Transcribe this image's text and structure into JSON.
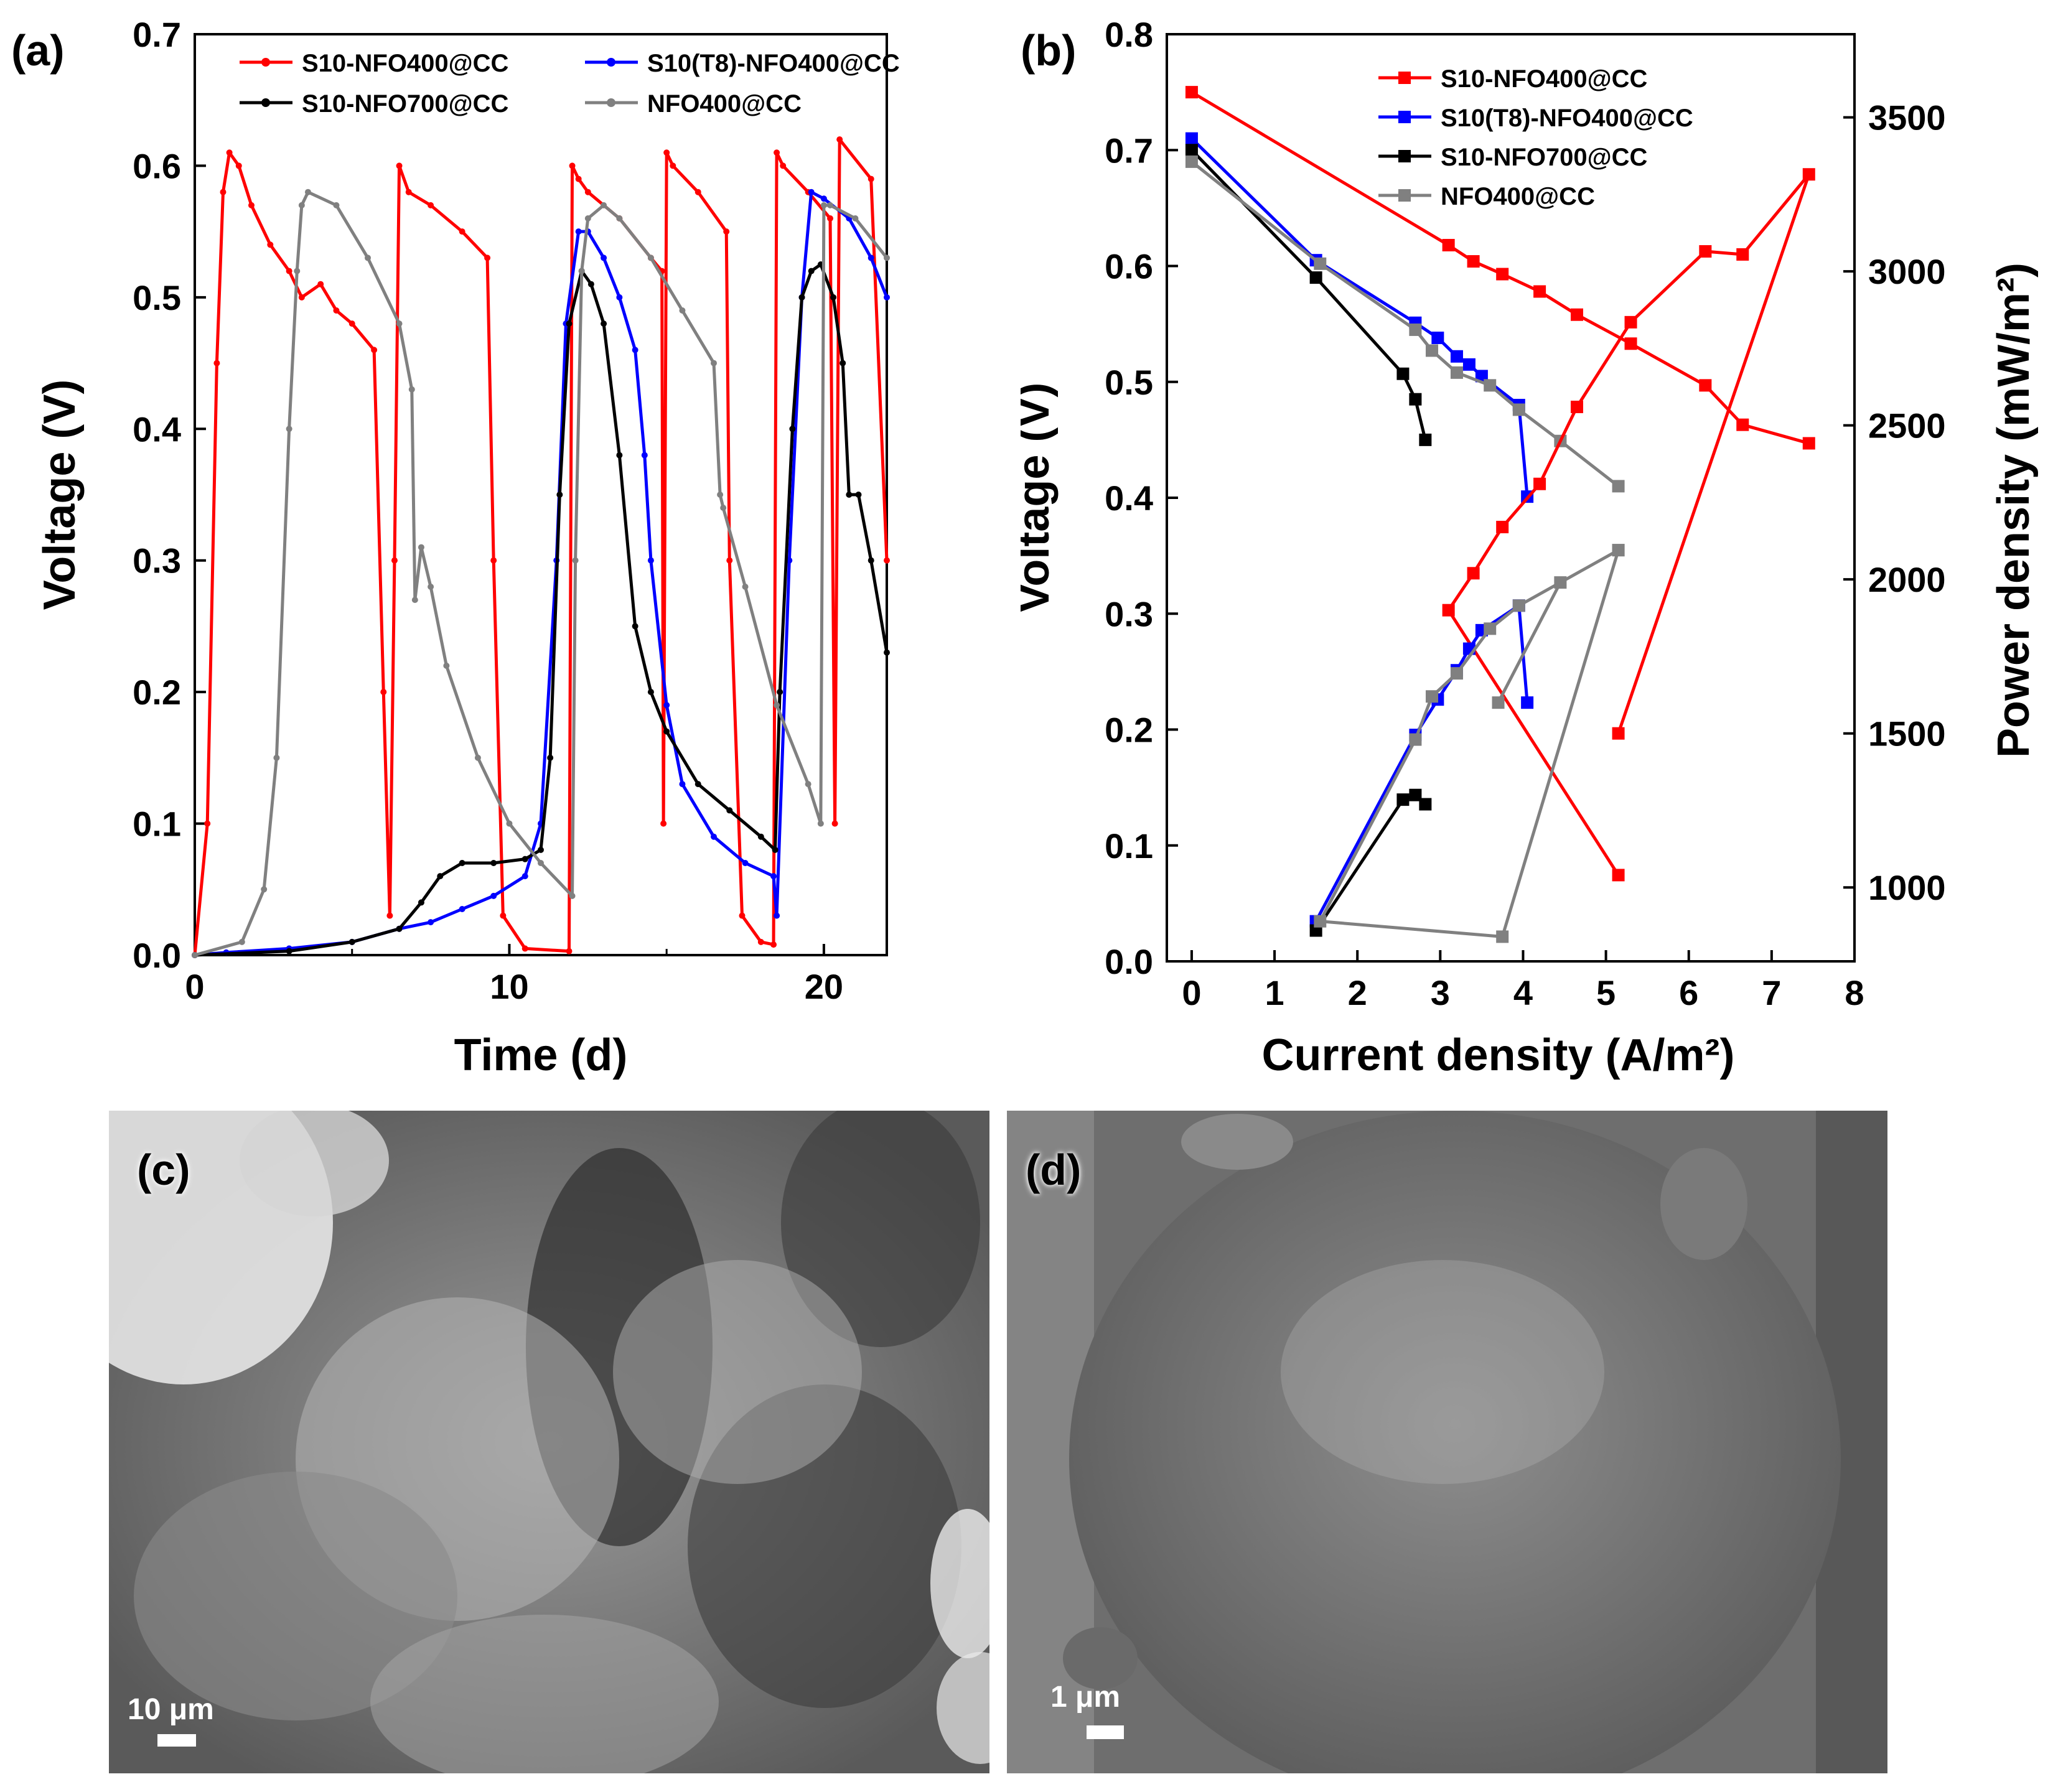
{
  "colors": {
    "S10-NFO400@CC": "#ff0000",
    "S10(T8)-NFO400@CC": "#0000ff",
    "S10-NFO700@CC": "#000000",
    "NFO400@CC": "#808080"
  },
  "chart_data": [
    {
      "panel": "(a)",
      "type": "line",
      "xlabel": "Time (d)",
      "ylabel": "Voltage (V)",
      "xlim": [
        0,
        22
      ],
      "ylim": [
        0,
        0.7
      ],
      "xticks": [
        "0",
        "10",
        "20"
      ],
      "yticks": [
        "0.0",
        "0.1",
        "0.2",
        "0.3",
        "0.4",
        "0.5",
        "0.6",
        "0.7"
      ],
      "legend": [
        "S10-NFO400@CC",
        "S10(T8)-NFO400@CC",
        "S10-NFO700@CC",
        "NFO400@CC"
      ],
      "legend_position": "top",
      "series": [
        {
          "name": "S10-NFO400@CC",
          "x": [
            0,
            0.4,
            0.7,
            0.9,
            1.1,
            1.4,
            1.8,
            2.4,
            3.0,
            3.4,
            4.0,
            4.5,
            5.0,
            5.7,
            6.0,
            6.2,
            6.35,
            6.5,
            6.8,
            7.5,
            8.5,
            9.3,
            9.5,
            9.8,
            10.5,
            11.9,
            12.0,
            12.2,
            12.5,
            13.5,
            14.5,
            14.85,
            14.9,
            15.0,
            15.2,
            16.0,
            16.9,
            17.0,
            17.4,
            18.0,
            18.4,
            18.5,
            18.7,
            19.5,
            20.2,
            20.35,
            20.5,
            21.5,
            22.0
          ],
          "y": [
            0,
            0.1,
            0.45,
            0.58,
            0.61,
            0.6,
            0.57,
            0.54,
            0.52,
            0.5,
            0.51,
            0.49,
            0.48,
            0.46,
            0.2,
            0.03,
            0.3,
            0.6,
            0.58,
            0.57,
            0.55,
            0.53,
            0.3,
            0.03,
            0.005,
            0.003,
            0.6,
            0.59,
            0.58,
            0.56,
            0.53,
            0.52,
            0.1,
            0.61,
            0.6,
            0.58,
            0.55,
            0.3,
            0.03,
            0.01,
            0.008,
            0.61,
            0.6,
            0.58,
            0.56,
            0.1,
            0.62,
            0.59,
            0.3
          ]
        },
        {
          "name": "S10(T8)-NFO400@CC",
          "x": [
            0,
            1,
            3,
            5,
            6.5,
            7.5,
            8.5,
            9.5,
            10.5,
            11.0,
            11.5,
            11.8,
            12.2,
            12.5,
            13.0,
            13.5,
            14.0,
            14.3,
            14.5,
            15.0,
            15.5,
            16.5,
            17.5,
            18.4,
            18.5,
            18.9,
            19.3,
            19.6,
            20.0,
            20.8,
            21.5,
            22.0
          ],
          "y": [
            0,
            0.002,
            0.005,
            0.01,
            0.02,
            0.025,
            0.035,
            0.045,
            0.06,
            0.1,
            0.3,
            0.48,
            0.55,
            0.55,
            0.53,
            0.5,
            0.46,
            0.38,
            0.3,
            0.19,
            0.13,
            0.09,
            0.07,
            0.06,
            0.03,
            0.3,
            0.5,
            0.58,
            0.575,
            0.56,
            0.53,
            0.5
          ]
        },
        {
          "name": "S10-NFO700@CC",
          "x": [
            0,
            3,
            5,
            6.5,
            7.2,
            7.8,
            8.5,
            9.5,
            10.5,
            11.0,
            11.3,
            11.6,
            11.9,
            12.3,
            12.6,
            13.0,
            13.5,
            14.0,
            14.5,
            15.0,
            16.0,
            17.0,
            18.0,
            18.45,
            18.6,
            19.0,
            19.3,
            19.6,
            19.9,
            20.3,
            20.6,
            20.8,
            21.1,
            21.5,
            22.0
          ],
          "y": [
            0,
            0.003,
            0.01,
            0.02,
            0.04,
            0.06,
            0.07,
            0.07,
            0.073,
            0.08,
            0.15,
            0.35,
            0.48,
            0.52,
            0.51,
            0.48,
            0.38,
            0.25,
            0.2,
            0.17,
            0.13,
            0.11,
            0.09,
            0.08,
            0.2,
            0.4,
            0.5,
            0.52,
            0.525,
            0.5,
            0.45,
            0.35,
            0.35,
            0.3,
            0.23
          ]
        },
        {
          "name": "NFO400@CC",
          "x": [
            0,
            1.5,
            2.2,
            2.6,
            3.0,
            3.25,
            3.4,
            3.6,
            4.5,
            5.5,
            6.5,
            6.9,
            7.0,
            7.2,
            7.5,
            8.0,
            9.0,
            10.0,
            11.0,
            12.0,
            12.1,
            12.3,
            12.5,
            13.0,
            13.5,
            14.5,
            15.5,
            16.5,
            16.7,
            16.8,
            17.5,
            18.5,
            19.5,
            19.9,
            20.0,
            20.2,
            21.0,
            22.0
          ],
          "y": [
            0,
            0.01,
            0.05,
            0.15,
            0.4,
            0.52,
            0.57,
            0.58,
            0.57,
            0.53,
            0.48,
            0.43,
            0.27,
            0.31,
            0.28,
            0.22,
            0.15,
            0.1,
            0.07,
            0.045,
            0.3,
            0.52,
            0.56,
            0.57,
            0.56,
            0.53,
            0.49,
            0.45,
            0.35,
            0.34,
            0.28,
            0.19,
            0.13,
            0.1,
            0.57,
            0.57,
            0.56,
            0.53
          ]
        }
      ]
    },
    {
      "panel": "(b)",
      "type": "line",
      "xlabel": "Current density (A/m²)",
      "ylabel": "Voltage (V)",
      "y2label": "Power density (mW/m²)",
      "xlim": [
        -0.3,
        8
      ],
      "ylim": [
        0,
        0.8
      ],
      "y2lim": [
        760,
        3770
      ],
      "xticks": [
        "0",
        "1",
        "2",
        "3",
        "4",
        "5",
        "6",
        "7",
        "8"
      ],
      "yticks": [
        "0.0",
        "0.1",
        "0.2",
        "0.3",
        "0.4",
        "0.5",
        "0.6",
        "0.7",
        "0.8"
      ],
      "y2ticks": [
        "1000",
        "1500",
        "2000",
        "2500",
        "3000",
        "3500"
      ],
      "legend": [
        "S10-NFO400@CC",
        "S10(T8)-NFO400@CC",
        "S10-NFO700@CC",
        "NFO400@CC"
      ],
      "legend_position": "top-right",
      "polarization": [
        {
          "name": "S10-NFO400@CC",
          "x": [
            0,
            3.1,
            3.4,
            3.75,
            4.2,
            4.65,
            5.3,
            6.2,
            6.65,
            7.45
          ],
          "y": [
            0.75,
            0.618,
            0.604,
            0.593,
            0.578,
            0.558,
            0.533,
            0.497,
            0.463,
            0.447
          ]
        },
        {
          "name": "S10(T8)-NFO400@CC",
          "x": [
            0,
            1.5,
            2.7,
            2.97,
            3.2,
            3.35,
            3.5,
            3.95,
            4.05
          ],
          "y": [
            0.71,
            0.605,
            0.551,
            0.538,
            0.522,
            0.515,
            0.505,
            0.48,
            0.401
          ]
        },
        {
          "name": "S10-NFO700@CC",
          "x": [
            0,
            1.5,
            2.55,
            2.7,
            2.82
          ],
          "y": [
            0.7,
            0.59,
            0.507,
            0.485,
            0.45
          ]
        },
        {
          "name": "NFO400@CC",
          "x": [
            0,
            1.55,
            2.7,
            2.9,
            3.2,
            3.6,
            3.95,
            4.45,
            5.15
          ],
          "y": [
            0.69,
            0.602,
            0.545,
            0.527,
            0.508,
            0.497,
            0.476,
            0.449,
            0.41
          ]
        }
      ],
      "power": [
        {
          "name": "S10-NFO400@CC",
          "x": [
            5.15,
            7.45,
            6.65,
            6.2,
            5.3,
            4.65,
            4.2,
            3.75,
            3.4,
            3.1,
            5.15
          ],
          "y": [
            1500,
            3315,
            3055,
            3065,
            2835,
            2560,
            2310,
            2170,
            2020,
            1900,
            1040
          ]
        },
        {
          "name": "S10(T8)-NFO400@CC",
          "x": [
            4.05,
            3.95,
            3.5,
            3.35,
            3.2,
            2.97,
            2.7,
            1.5
          ],
          "y": [
            1600,
            1915,
            1835,
            1775,
            1705,
            1610,
            1495,
            890
          ]
        },
        {
          "name": "S10-NFO700@CC",
          "x": [
            2.82,
            2.7,
            2.55,
            1.5
          ],
          "y": [
            1270,
            1300,
            1285,
            860
          ]
        },
        {
          "name": "NFO400@CC",
          "x": [
            5.15,
            3.95,
            3.6,
            3.2,
            2.9,
            2.7,
            1.55,
            3.75,
            5.15,
            4.45,
            3.7
          ],
          "y": [
            2095,
            1915,
            1840,
            1695,
            1620,
            1480,
            890,
            840,
            2095,
            1990,
            1600
          ]
        }
      ]
    }
  ],
  "panels": {
    "a_label": "(a)",
    "b_label": "(b)",
    "c_label": "(c)",
    "d_label": "(d)",
    "c_scale": "10 μm",
    "d_scale": "1 μm"
  }
}
